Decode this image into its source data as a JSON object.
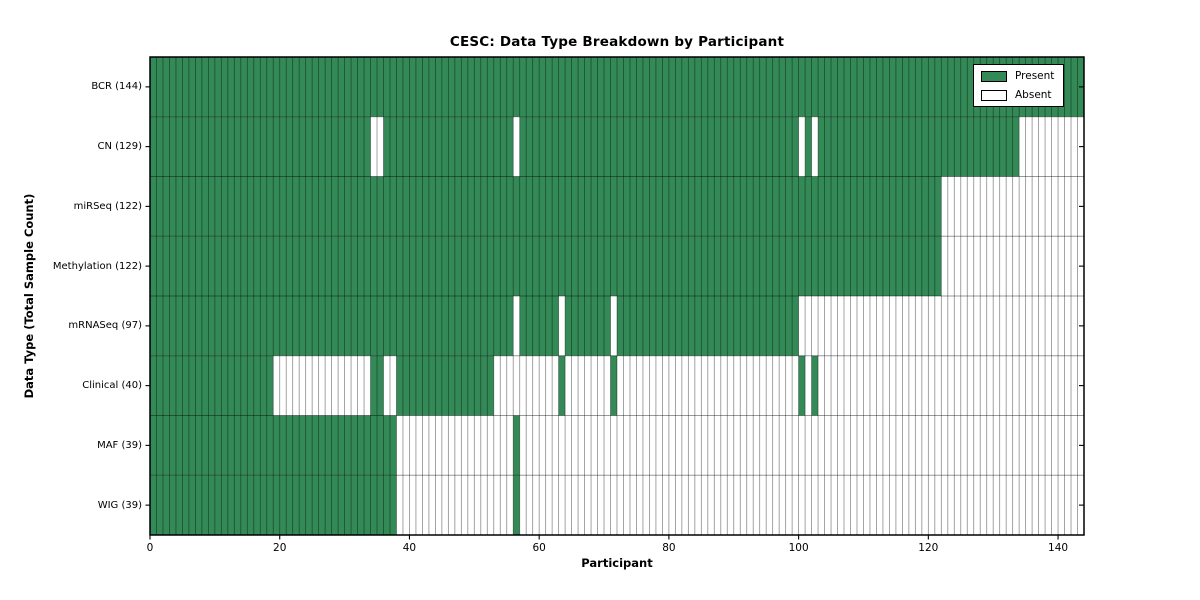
{
  "chart_data": {
    "type": "heatmap",
    "title": "CESC: Data Type Breakdown by Participant",
    "xlabel": "Participant",
    "ylabel": "Data Type (Total Sample Count)",
    "x_range": [
      0,
      144
    ],
    "n_participants": 144,
    "x_ticks": [
      0,
      20,
      40,
      60,
      80,
      100,
      120,
      140
    ],
    "legend_entries": [
      {
        "label": "Present",
        "value": "present"
      },
      {
        "label": "Absent",
        "value": "absent"
      }
    ],
    "legend_position": "upper-right",
    "grid": "per-cell outlines",
    "rows": [
      {
        "label": "BCR (144)",
        "name": "BCR",
        "total": 144,
        "present_ranges": [
          [
            0,
            144
          ]
        ]
      },
      {
        "label": "CN (129)",
        "name": "CN",
        "total": 129,
        "present_ranges": [
          [
            0,
            34
          ],
          [
            36,
            56
          ],
          [
            57,
            100
          ],
          [
            101,
            102
          ],
          [
            103,
            134
          ]
        ]
      },
      {
        "label": "miRSeq (122)",
        "name": "miRSeq",
        "total": 122,
        "present_ranges": [
          [
            0,
            122
          ]
        ]
      },
      {
        "label": "Methylation (122)",
        "name": "Methylation",
        "total": 122,
        "present_ranges": [
          [
            0,
            122
          ]
        ]
      },
      {
        "label": "mRNASeq (97)",
        "name": "mRNASeq",
        "total": 97,
        "present_ranges": [
          [
            0,
            56
          ],
          [
            57,
            63
          ],
          [
            64,
            71
          ],
          [
            72,
            100
          ]
        ]
      },
      {
        "label": "Clinical (40)",
        "name": "Clinical",
        "total": 40,
        "present_ranges": [
          [
            0,
            19
          ],
          [
            34,
            36
          ],
          [
            38,
            53
          ],
          [
            63,
            64
          ],
          [
            71,
            72
          ],
          [
            100,
            101
          ],
          [
            102,
            103
          ]
        ]
      },
      {
        "label": "MAF (39)",
        "name": "MAF",
        "total": 39,
        "present_ranges": [
          [
            0,
            38
          ],
          [
            56,
            57
          ]
        ]
      },
      {
        "label": "WIG (39)",
        "name": "WIG",
        "total": 39,
        "present_ranges": [
          [
            0,
            38
          ],
          [
            56,
            57
          ]
        ]
      }
    ],
    "colors": {
      "present": "#338a57",
      "absent": "#ffffff",
      "cell_border": "rgba(0,0,0,0.45)",
      "row_separator": "rgba(0,0,0,0.40)",
      "frame": "#000000",
      "text": "#000000"
    }
  }
}
